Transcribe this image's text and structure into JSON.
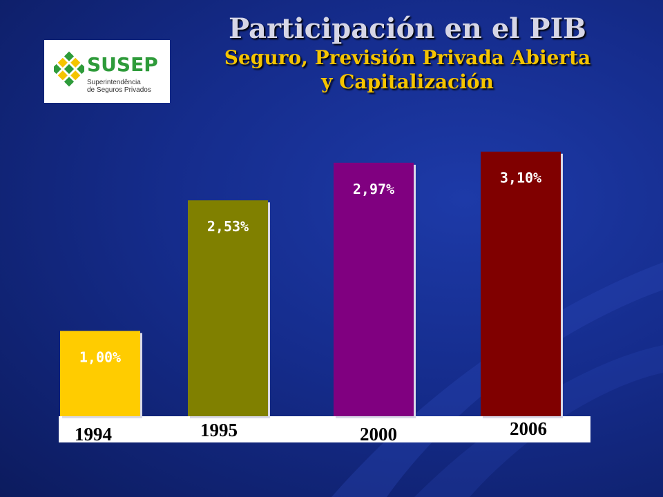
{
  "title": "Participación en el PIB",
  "subtitle_line1": "Seguro, Previsión Privada Abierta",
  "subtitle_line2": "y Capitalización",
  "logo": {
    "name": "SUSEP",
    "subtitle_line1": "Superintendência",
    "subtitle_line2": "de Seguros Privados"
  },
  "chart_data": {
    "type": "bar",
    "categories": [
      "1994",
      "1995",
      "2000",
      "2006"
    ],
    "values": [
      1.0,
      2.53,
      2.97,
      3.1
    ],
    "value_labels": [
      "1,00%",
      "2,53%",
      "2,97%",
      "3,10%"
    ],
    "colors": [
      "#ffcc00",
      "#808000",
      "#800080",
      "#800000"
    ],
    "ylim": [
      0,
      3.3
    ],
    "grid": false,
    "legend": "none"
  }
}
